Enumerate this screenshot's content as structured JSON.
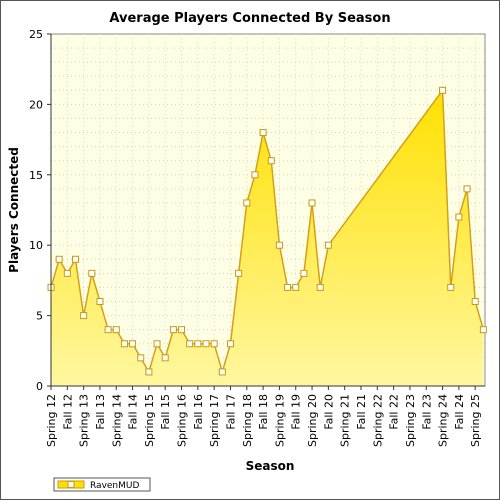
{
  "chart_data": {
    "type": "area",
    "title": "Average Players Connected By Season",
    "xlabel": "Season",
    "ylabel": "Players Connected",
    "ylim": [
      0,
      25
    ],
    "yticks": [
      0,
      5,
      10,
      15,
      20,
      25
    ],
    "grid": true,
    "legend_position": "bottom-left",
    "colors": {
      "fill_top": "#ffe000",
      "fill_bottom": "#fff59a",
      "line": "#d4a017",
      "marker_fill": "#ffffff",
      "marker_stroke": "#c89a10",
      "plot_bg": "#ffffe6"
    },
    "categories": [
      "Spring 12",
      "Fall 12",
      "Spring 13",
      "Fall 13",
      "Spring 14",
      "Fall 14",
      "Spring 15",
      "Fall 15",
      "Spring 16",
      "Fall 16",
      "Spring 17",
      "Fall 17",
      "Spring 18",
      "Fall 18",
      "Spring 19",
      "Fall 19",
      "Spring 20",
      "Fall 20",
      "Spring 21",
      "Fall 21",
      "Spring 22",
      "Fall 22",
      "Spring 23",
      "Fall 23",
      "Spring 24",
      "Fall 24",
      "Spring 25"
    ],
    "series": [
      {
        "name": "RavenMUD",
        "points": [
          [
            0,
            7
          ],
          [
            0.5,
            9
          ],
          [
            1,
            8
          ],
          [
            1.5,
            9
          ],
          [
            2,
            5
          ],
          [
            2.5,
            8
          ],
          [
            3,
            6
          ],
          [
            3.5,
            4
          ],
          [
            4,
            4
          ],
          [
            4.5,
            3
          ],
          [
            5,
            3
          ],
          [
            5.5,
            2
          ],
          [
            6,
            1
          ],
          [
            6.5,
            3
          ],
          [
            7,
            2
          ],
          [
            7.5,
            4
          ],
          [
            8,
            4
          ],
          [
            8.5,
            3
          ],
          [
            9,
            3
          ],
          [
            9.5,
            3
          ],
          [
            10,
            3
          ],
          [
            10.5,
            1
          ],
          [
            11,
            3
          ],
          [
            11.5,
            8
          ],
          [
            12,
            13
          ],
          [
            12.5,
            15
          ],
          [
            13,
            18
          ],
          [
            13.5,
            16
          ],
          [
            14,
            10
          ],
          [
            14.5,
            7
          ],
          [
            15,
            7
          ],
          [
            15.5,
            8
          ],
          [
            16,
            13
          ],
          [
            16.5,
            7
          ],
          [
            17,
            10
          ],
          [
            24,
            21
          ],
          [
            24.5,
            7
          ],
          [
            25,
            12
          ],
          [
            25.5,
            14
          ],
          [
            26,
            6
          ],
          [
            26.5,
            4
          ]
        ]
      }
    ]
  }
}
